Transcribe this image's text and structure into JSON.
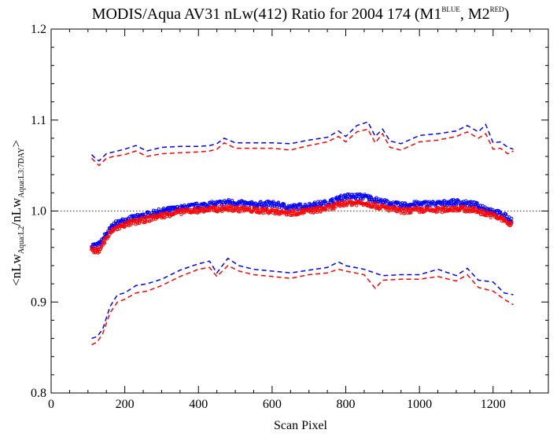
{
  "chart_data": {
    "type": "scatter",
    "title": {
      "main": "MODIS/Aqua AV31 nLw(412) Ratio for 2004 174 (M1",
      "sup1": "BLUE",
      "mid": ", M2",
      "sup2": "RED",
      "end": ")"
    },
    "xlabel": "Scan Pixel",
    "ylabel": {
      "p1": "<nLw",
      "s1": "Aqua:L2",
      "p2": "/nLw",
      "s2": "Aqua:L3:7DAY",
      "p3": ">"
    },
    "xlim": [
      0,
      1350
    ],
    "ylim": [
      0.8,
      1.2
    ],
    "x_ticks": [
      0,
      200,
      400,
      600,
      800,
      1000,
      1200
    ],
    "y_ticks": [
      0.8,
      0.9,
      1.0,
      1.1,
      1.2
    ],
    "x_tick_labels": [
      "0",
      "200",
      "400",
      "600",
      "800",
      "1000",
      "1200"
    ],
    "y_tick_labels": [
      "0.8",
      "0.9",
      "1.0",
      "1.1",
      "1.2"
    ],
    "reference_line": {
      "y": 1.0,
      "style": "dotted"
    },
    "colors": {
      "M1": "#0000ff",
      "M2": "#ff0000",
      "axis": "#000000"
    },
    "series": [
      {
        "name": "M1",
        "color": "#0000ff",
        "style": "points",
        "x": [
          110,
          125,
          135,
          150,
          170,
          200,
          250,
          300,
          350,
          400,
          450,
          480,
          550,
          600,
          650,
          700,
          750,
          800,
          850,
          900,
          950,
          1000,
          1050,
          1100,
          1150,
          1200,
          1230,
          1250
        ],
        "y": [
          0.962,
          0.962,
          0.965,
          0.975,
          0.985,
          0.99,
          0.995,
          1.0,
          1.003,
          1.006,
          1.008,
          1.01,
          1.007,
          1.008,
          1.004,
          1.006,
          1.009,
          1.016,
          1.016,
          1.01,
          1.006,
          1.008,
          1.008,
          1.01,
          1.007,
          1.0,
          0.995,
          0.99
        ]
      },
      {
        "name": "M2",
        "color": "#ff0000",
        "style": "points",
        "x": [
          110,
          125,
          135,
          150,
          170,
          200,
          250,
          300,
          350,
          400,
          450,
          480,
          550,
          600,
          650,
          700,
          750,
          800,
          850,
          900,
          950,
          1000,
          1050,
          1100,
          1150,
          1200,
          1230,
          1250
        ],
        "y": [
          0.958,
          0.955,
          0.96,
          0.97,
          0.98,
          0.985,
          0.99,
          0.995,
          0.999,
          1.001,
          1.002,
          1.003,
          1.001,
          1.0,
          0.998,
          1.0,
          1.003,
          1.009,
          1.009,
          1.004,
          1.0,
          1.001,
          1.001,
          1.003,
          1.001,
          0.995,
          0.99,
          0.984
        ]
      },
      {
        "name": "M1 upper",
        "color": "#0000ff",
        "style": "dashed",
        "x": [
          110,
          120,
          130,
          150,
          170,
          200,
          230,
          260,
          300,
          350,
          400,
          430,
          450,
          470,
          500,
          550,
          600,
          650,
          700,
          750,
          780,
          800,
          830,
          860,
          880,
          900,
          920,
          950,
          1000,
          1050,
          1100,
          1130,
          1160,
          1180,
          1200,
          1220,
          1240,
          1255
        ],
        "y": [
          1.062,
          1.058,
          1.055,
          1.063,
          1.065,
          1.068,
          1.072,
          1.066,
          1.07,
          1.071,
          1.071,
          1.072,
          1.074,
          1.08,
          1.075,
          1.075,
          1.075,
          1.074,
          1.078,
          1.081,
          1.088,
          1.082,
          1.094,
          1.098,
          1.082,
          1.09,
          1.077,
          1.074,
          1.083,
          1.085,
          1.088,
          1.094,
          1.087,
          1.095,
          1.075,
          1.076,
          1.07,
          1.068
        ]
      },
      {
        "name": "M2 upper",
        "color": "#ff0000",
        "style": "dashed",
        "x": [
          110,
          120,
          130,
          150,
          170,
          200,
          230,
          260,
          300,
          350,
          400,
          430,
          450,
          470,
          500,
          550,
          600,
          650,
          700,
          750,
          780,
          800,
          830,
          860,
          880,
          900,
          920,
          950,
          1000,
          1050,
          1100,
          1130,
          1160,
          1180,
          1200,
          1220,
          1240,
          1255
        ],
        "y": [
          1.058,
          1.054,
          1.05,
          1.058,
          1.06,
          1.062,
          1.066,
          1.06,
          1.063,
          1.064,
          1.065,
          1.066,
          1.068,
          1.075,
          1.069,
          1.069,
          1.069,
          1.067,
          1.072,
          1.076,
          1.082,
          1.076,
          1.087,
          1.09,
          1.075,
          1.085,
          1.07,
          1.067,
          1.076,
          1.078,
          1.082,
          1.087,
          1.08,
          1.085,
          1.068,
          1.069,
          1.063,
          1.066
        ]
      },
      {
        "name": "M1 lower",
        "color": "#0000ff",
        "style": "dashed",
        "x": [
          110,
          125,
          140,
          160,
          180,
          200,
          230,
          260,
          300,
          350,
          400,
          430,
          450,
          480,
          510,
          550,
          600,
          650,
          700,
          750,
          780,
          800,
          850,
          900,
          950,
          1000,
          1050,
          1100,
          1130,
          1160,
          1200,
          1230,
          1255
        ],
        "y": [
          0.86,
          0.862,
          0.87,
          0.895,
          0.908,
          0.91,
          0.918,
          0.92,
          0.925,
          0.935,
          0.942,
          0.945,
          0.932,
          0.948,
          0.94,
          0.936,
          0.934,
          0.932,
          0.935,
          0.938,
          0.944,
          0.94,
          0.936,
          0.929,
          0.93,
          0.93,
          0.936,
          0.929,
          0.937,
          0.924,
          0.922,
          0.91,
          0.908
        ]
      },
      {
        "name": "M2 lower",
        "color": "#ff0000",
        "style": "dashed",
        "x": [
          110,
          125,
          140,
          160,
          180,
          200,
          230,
          260,
          300,
          350,
          400,
          430,
          450,
          480,
          510,
          550,
          600,
          650,
          700,
          750,
          780,
          800,
          850,
          880,
          900,
          950,
          1000,
          1050,
          1100,
          1130,
          1160,
          1200,
          1230,
          1255
        ],
        "y": [
          0.853,
          0.856,
          0.865,
          0.888,
          0.9,
          0.903,
          0.91,
          0.912,
          0.918,
          0.928,
          0.936,
          0.938,
          0.928,
          0.94,
          0.934,
          0.93,
          0.928,
          0.926,
          0.93,
          0.932,
          0.936,
          0.934,
          0.93,
          0.915,
          0.924,
          0.925,
          0.925,
          0.928,
          0.923,
          0.93,
          0.916,
          0.912,
          0.903,
          0.897
        ]
      }
    ]
  }
}
